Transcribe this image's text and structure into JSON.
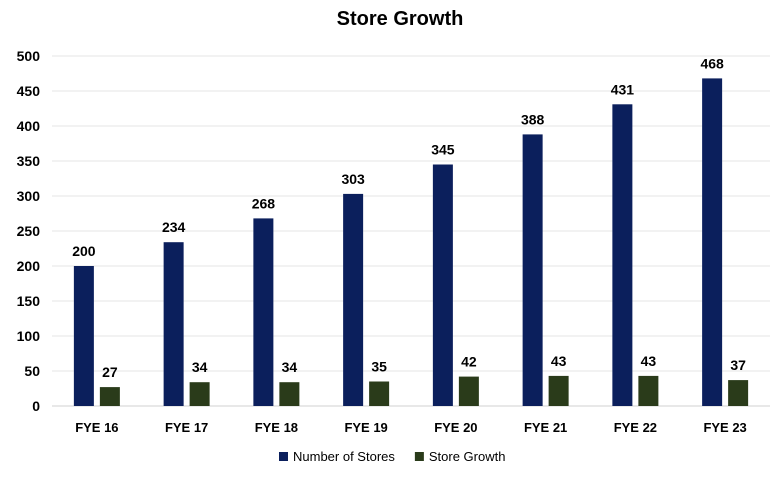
{
  "chart_data": {
    "type": "bar",
    "title": "Store Growth",
    "xlabel": "",
    "ylabel": "",
    "categories": [
      "FYE 16",
      "FYE 17",
      "FYE 18",
      "FYE 19",
      "FYE 20",
      "FYE 21",
      "FYE 22",
      "FYE 23"
    ],
    "series": [
      {
        "name": "Number of Stores",
        "color": "#0b1f5c",
        "values": [
          200,
          234,
          268,
          303,
          345,
          388,
          431,
          468
        ]
      },
      {
        "name": "Store Growth",
        "color": "#2a3b1a",
        "values": [
          27,
          34,
          34,
          35,
          42,
          43,
          43,
          37
        ]
      }
    ],
    "ylim": [
      0,
      500
    ],
    "yticks": [
      0,
      50,
      100,
      150,
      200,
      250,
      300,
      350,
      400,
      450,
      500
    ],
    "grid": true,
    "legend_position": "bottom",
    "data_labels": true
  }
}
